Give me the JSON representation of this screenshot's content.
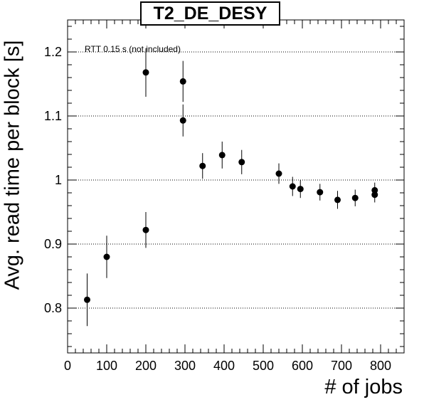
{
  "chart_data": {
    "type": "scatter",
    "title": "T2_DE_DESY",
    "xlabel": "# of jobs",
    "ylabel": "Avg. read time per block [s]",
    "annotation": "RTT 0.15 s (not included)",
    "xlim": [
      0,
      860
    ],
    "ylim": [
      0.73,
      1.25
    ],
    "x_ticks": [
      0,
      100,
      200,
      300,
      400,
      500,
      600,
      700,
      800
    ],
    "y_ticks": [
      0.8,
      0.9,
      1,
      1.1,
      1.2
    ],
    "y_tick_labels": [
      "0.8",
      "0.9",
      "1",
      "1.1",
      "1.2"
    ],
    "grid_y": true,
    "series": [
      {
        "x": [
          50,
          100,
          200,
          200,
          295,
          295,
          345,
          395,
          445,
          540,
          575,
          595,
          645,
          690,
          735,
          785,
          785
        ],
        "y": [
          0.813,
          0.88,
          1.168,
          0.922,
          1.154,
          1.093,
          1.022,
          1.039,
          1.028,
          1.01,
          0.99,
          0.986,
          0.981,
          0.969,
          0.972,
          0.984,
          0.977
        ],
        "err": [
          0.041,
          0.033,
          0.038,
          0.028,
          0.032,
          0.025,
          0.02,
          0.021,
          0.019,
          0.016,
          0.015,
          0.014,
          0.013,
          0.014,
          0.013,
          0.012,
          0.012
        ]
      }
    ]
  }
}
